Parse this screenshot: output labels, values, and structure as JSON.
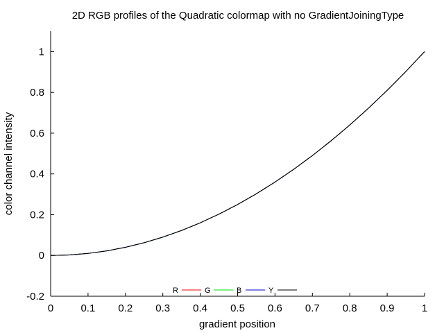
{
  "chart_data": {
    "type": "line",
    "title": "2D RGB profiles of the Quadratic colormap with no GradientJoiningType",
    "xlabel": "gradient position",
    "ylabel": "color channel intensity",
    "xlim": [
      0,
      1
    ],
    "ylim": [
      -0.2,
      1.1
    ],
    "xticks": [
      0,
      0.1,
      0.2,
      0.3,
      0.4,
      0.5,
      0.6,
      0.7,
      0.8,
      0.9,
      1
    ],
    "xtick_labels": [
      "0",
      "0.1",
      "0.2",
      "0.3",
      "0.4",
      "0.5",
      "0.6",
      "0.7",
      "0.8",
      "0.9",
      "1"
    ],
    "yticks": [
      -0.2,
      0,
      0.2,
      0.4,
      0.6,
      0.8,
      1
    ],
    "ytick_labels": [
      "-0.2",
      "0",
      "0.2",
      "0.4",
      "0.6",
      "0.8",
      "1"
    ],
    "grid": false,
    "legend_position": "bottom-center",
    "x": [
      0,
      0.05,
      0.1,
      0.15,
      0.2,
      0.25,
      0.3,
      0.35,
      0.4,
      0.45,
      0.5,
      0.55,
      0.6,
      0.65,
      0.7,
      0.75,
      0.8,
      0.85,
      0.9,
      0.95,
      1
    ],
    "series": [
      {
        "name": "R",
        "color": "#ff0000",
        "values": [
          0,
          0.0025,
          0.01,
          0.0225,
          0.04,
          0.0625,
          0.09,
          0.1225,
          0.16,
          0.2025,
          0.25,
          0.3025,
          0.36,
          0.4225,
          0.49,
          0.5625,
          0.64,
          0.7225,
          0.81,
          0.9025,
          1
        ]
      },
      {
        "name": "G",
        "color": "#00dd00",
        "values": [
          0,
          0.0025,
          0.01,
          0.0225,
          0.04,
          0.0625,
          0.09,
          0.1225,
          0.16,
          0.2025,
          0.25,
          0.3025,
          0.36,
          0.4225,
          0.49,
          0.5625,
          0.64,
          0.7225,
          0.81,
          0.9025,
          1
        ]
      },
      {
        "name": "B",
        "color": "#0000cc",
        "values": [
          0,
          0.0025,
          0.01,
          0.0225,
          0.04,
          0.0625,
          0.09,
          0.1225,
          0.16,
          0.2025,
          0.25,
          0.3025,
          0.36,
          0.4225,
          0.49,
          0.5625,
          0.64,
          0.7225,
          0.81,
          0.9025,
          1
        ]
      },
      {
        "name": "Y",
        "color": "#000000",
        "values": [
          0,
          0.0025,
          0.01,
          0.0225,
          0.04,
          0.0625,
          0.09,
          0.1225,
          0.16,
          0.2025,
          0.25,
          0.3025,
          0.36,
          0.4225,
          0.49,
          0.5625,
          0.64,
          0.7225,
          0.81,
          0.9025,
          1
        ]
      }
    ]
  }
}
